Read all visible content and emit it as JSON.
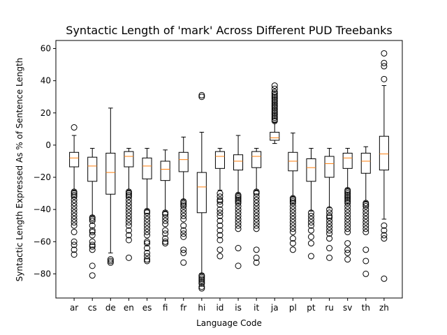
{
  "chart_data": {
    "type": "box",
    "title": "Syntactic Length of 'mark' Across Different PUD Treebanks",
    "xlabel": "Language Code",
    "ylabel": "Syntactic Length Expressed As % of Sentence Length",
    "ylim": [
      -95,
      65
    ],
    "yticks": [
      -80,
      -60,
      -40,
      -20,
      0,
      20,
      40,
      60
    ],
    "grid": false,
    "colors": {
      "box": "#000000",
      "median": "#ff7f0e",
      "flier": "#000000"
    },
    "categories": [
      "ar",
      "cs",
      "de",
      "en",
      "es",
      "fi",
      "fr",
      "hi",
      "id",
      "is",
      "it",
      "ja",
      "pl",
      "pt",
      "ru",
      "sv",
      "th",
      "zh"
    ],
    "boxes": [
      {
        "label": "ar",
        "whislo": -28,
        "q1": -13.5,
        "med": -8,
        "q3": -4.5,
        "whishi": 6,
        "fliers": [
          11,
          -29,
          -30,
          -31,
          -32,
          -34,
          -36,
          -38,
          -40,
          -42,
          -44,
          -46,
          -48,
          -50,
          -54,
          -60,
          -62,
          -65,
          -68
        ]
      },
      {
        "label": "cs",
        "whislo": -44,
        "q1": -22.5,
        "med": -13,
        "q3": -7.5,
        "whishi": -2,
        "fliers": [
          -45,
          -46,
          -47,
          -50,
          -53,
          -54,
          -56,
          -60,
          -62,
          -63,
          -65,
          -75,
          -81
        ]
      },
      {
        "label": "de",
        "whislo": -67,
        "q1": -30.5,
        "med": -17,
        "q3": -5,
        "whishi": 23,
        "fliers": [
          -71,
          -72,
          -73
        ]
      },
      {
        "label": "en",
        "whislo": -28,
        "q1": -13.5,
        "med": -7,
        "q3": -4,
        "whishi": -2,
        "fliers": [
          -29,
          -30,
          -31,
          -32,
          -34,
          -36,
          -38,
          -40,
          -42,
          -44,
          -46,
          -48,
          -50,
          -53,
          -56,
          -59,
          -70
        ]
      },
      {
        "label": "es",
        "whislo": -40,
        "q1": -21,
        "med": -13,
        "q3": -8,
        "whishi": -2,
        "fliers": [
          -41,
          -42,
          -44,
          -46,
          -48,
          -50,
          -52,
          -54,
          -56,
          -60,
          -61,
          -64,
          -67,
          -69,
          -71,
          -72
        ]
      },
      {
        "label": "fi",
        "whislo": -41,
        "q1": -22,
        "med": -15,
        "q3": -10,
        "whishi": -3,
        "fliers": [
          -42,
          -43,
          -45,
          -47,
          -49,
          -53,
          -55,
          -58,
          -60,
          -61
        ]
      },
      {
        "label": "fr",
        "whislo": -34,
        "q1": -16.5,
        "med": -9,
        "q3": -4.5,
        "whishi": 5,
        "fliers": [
          -35,
          -36,
          -37,
          -38,
          -40,
          -42,
          -44,
          -46,
          -50,
          -53,
          -55,
          -57,
          -65,
          -67,
          -73
        ]
      },
      {
        "label": "hi",
        "whislo": -80,
        "q1": -42,
        "med": -26,
        "q3": -17,
        "whishi": 8,
        "fliers": [
          31,
          30,
          -81,
          -82,
          -83,
          -84,
          -85,
          -86,
          -88,
          -89
        ]
      },
      {
        "label": "id",
        "whislo": -28,
        "q1": -14.5,
        "med": -7,
        "q3": -4,
        "whishi": -2,
        "fliers": [
          -30,
          -32,
          -34,
          -35,
          -37,
          -40,
          -42,
          -44,
          -47,
          -50,
          -53,
          -56,
          -59,
          -65,
          -69
        ]
      },
      {
        "label": "is",
        "whislo": -30,
        "q1": -15.5,
        "med": -10,
        "q3": -6,
        "whishi": 6,
        "fliers": [
          -31,
          -32,
          -33,
          -34,
          -35,
          -36,
          -38,
          -40,
          -42,
          -44,
          -46,
          -48,
          -50,
          -52,
          -64,
          -75
        ]
      },
      {
        "label": "it",
        "whislo": -28,
        "q1": -14,
        "med": -7,
        "q3": -4,
        "whishi": -2,
        "fliers": [
          -29,
          -30,
          -32,
          -34,
          -36,
          -38,
          -40,
          -42,
          -44,
          -46,
          -48,
          -50,
          -52,
          -65,
          -70,
          -73
        ]
      },
      {
        "label": "ja",
        "whislo": 1,
        "q1": 3,
        "med": 4.5,
        "q3": 8,
        "whishi": 14,
        "fliers": [
          15,
          16,
          17,
          18,
          19,
          20,
          21,
          22,
          23,
          24,
          25,
          26,
          27,
          28,
          29,
          30,
          31,
          32,
          33,
          35,
          37
        ]
      },
      {
        "label": "pl",
        "whislo": -32,
        "q1": -16,
        "med": -10,
        "q3": -4.5,
        "whishi": 7.5,
        "fliers": [
          -33,
          -34,
          -35,
          -36,
          -38,
          -40,
          -42,
          -44,
          -46,
          -48,
          -50,
          -52,
          -54,
          -58,
          -61,
          -65
        ]
      },
      {
        "label": "pt",
        "whislo": -41,
        "q1": -22.5,
        "med": -14,
        "q3": -8.5,
        "whishi": -2,
        "fliers": [
          -42,
          -44,
          -46,
          -48,
          -50,
          -53,
          -57,
          -61,
          -69
        ]
      },
      {
        "label": "ru",
        "whislo": -39,
        "q1": -20,
        "med": -11.5,
        "q3": -7,
        "whishi": -2,
        "fliers": [
          -40,
          -42,
          -44,
          -45,
          -47,
          -49,
          -51,
          -53,
          -55,
          -58,
          -64,
          -70
        ]
      },
      {
        "label": "sv",
        "whislo": -27,
        "q1": -14.5,
        "med": -8,
        "q3": -5,
        "whishi": -2,
        "fliers": [
          -28,
          -29,
          -30,
          -31,
          -32,
          -33,
          -34,
          -35,
          -36,
          -38,
          -40,
          -42,
          -44,
          -46,
          -48,
          -50,
          -52,
          -54,
          -61,
          -65,
          -67,
          -71
        ]
      },
      {
        "label": "th",
        "whislo": -35,
        "q1": -17.5,
        "med": -10,
        "q3": -5,
        "whishi": -1,
        "fliers": [
          -36,
          -37,
          -38,
          -40,
          -42,
          -44,
          -46,
          -48,
          -50,
          -52,
          -54,
          -65,
          -72,
          -80
        ]
      },
      {
        "label": "zh",
        "whislo": -46,
        "q1": -15.5,
        "med": -5.5,
        "q3": 5.5,
        "whishi": 37,
        "fliers": [
          57,
          51,
          49,
          41,
          -50,
          -53,
          -56,
          -58,
          -83
        ]
      }
    ]
  }
}
